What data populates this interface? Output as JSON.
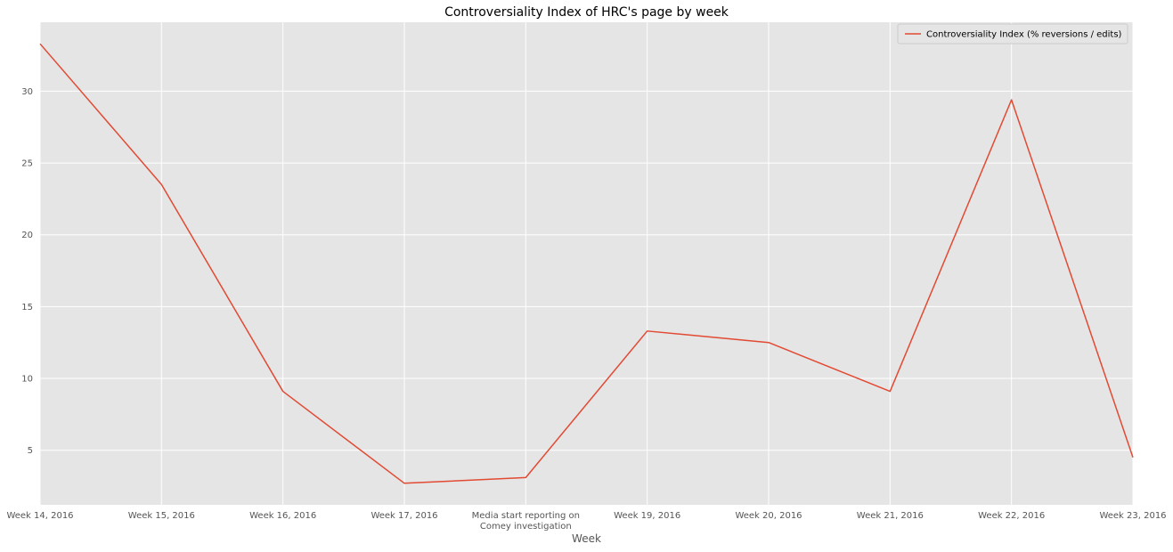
{
  "chart_data": {
    "type": "line",
    "title": "Controversiality Index of HRC's page by week",
    "xlabel": "Week",
    "ylabel": "",
    "categories": [
      "Week 14, 2016",
      "Week 15, 2016",
      "Week 16, 2016",
      "Week 17, 2016",
      "Media start reporting on Comey investigation",
      "Week 19, 2016",
      "Week 20, 2016",
      "Week 21, 2016",
      "Week 22, 2016",
      "Week 23, 2016"
    ],
    "category_label_lines": [
      [
        "Week 14, 2016"
      ],
      [
        "Week 15, 2016"
      ],
      [
        "Week 16, 2016"
      ],
      [
        "Week 17, 2016"
      ],
      [
        "Media start reporting on",
        "Comey investigation"
      ],
      [
        "Week 19, 2016"
      ],
      [
        "Week 20, 2016"
      ],
      [
        "Week 21, 2016"
      ],
      [
        "Week 22, 2016"
      ],
      [
        "Week 23, 2016"
      ]
    ],
    "series": [
      {
        "name": "Controversiality Index (% reversions / edits)",
        "values": [
          33.3,
          23.5,
          9.1,
          2.7,
          3.1,
          13.3,
          12.5,
          9.1,
          29.4,
          4.5
        ],
        "color": "#E24A33"
      }
    ],
    "yticks": [
      5,
      10,
      15,
      20,
      25,
      30
    ],
    "ylim": [
      1.2,
      34.8
    ],
    "grid": true,
    "legend_position": "top-right",
    "plot_background": "#E5E5E5",
    "grid_color": "#FFFFFF"
  }
}
